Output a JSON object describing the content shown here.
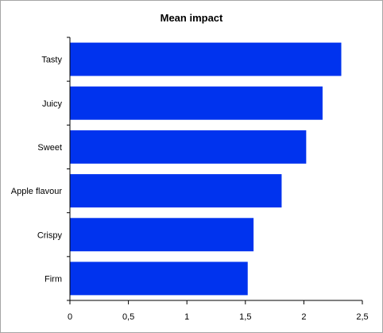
{
  "chart_data": {
    "type": "bar",
    "orientation": "horizontal",
    "title": "Mean impact",
    "xlabel": "",
    "ylabel": "",
    "categories": [
      "Tasty",
      "Juicy",
      "Sweet",
      "Apple flavour",
      "Crispy",
      "Firm"
    ],
    "values": [
      2.32,
      2.16,
      2.02,
      1.81,
      1.57,
      1.52
    ],
    "xlim": [
      0,
      2.5
    ],
    "xticks": [
      "0",
      "0,5",
      "1",
      "1,5",
      "2",
      "2,5"
    ],
    "tick_values": [
      0,
      0.5,
      1,
      1.5,
      2,
      2.5
    ],
    "bar_color": "#0033ee",
    "grid": false,
    "legend": "none"
  }
}
